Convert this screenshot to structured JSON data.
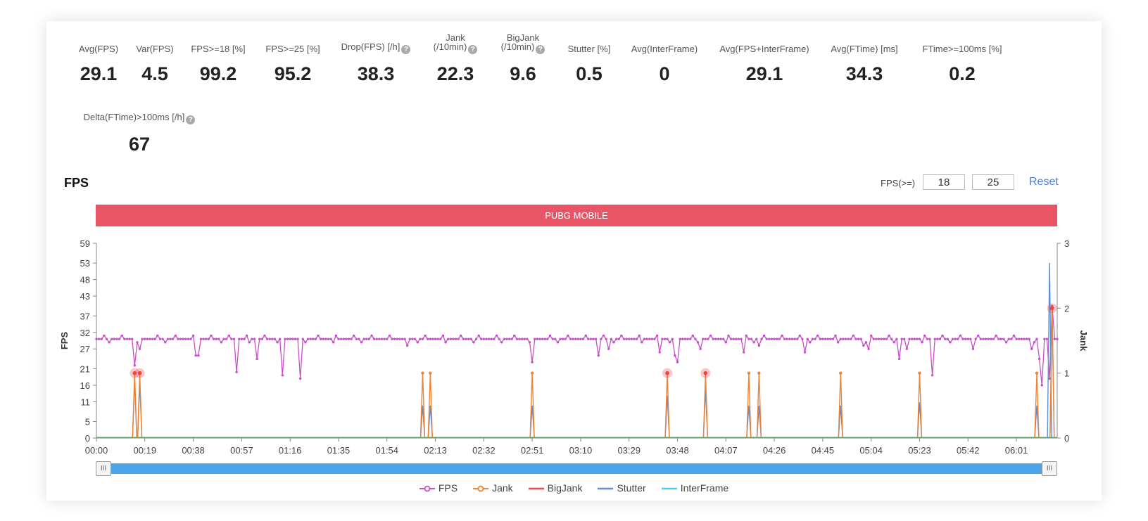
{
  "stats": [
    {
      "label": "Avg(FPS)",
      "value": "29.1",
      "help": false
    },
    {
      "label": "Var(FPS)",
      "value": "4.5",
      "help": false
    },
    {
      "label": "FPS>=18 [%]",
      "value": "99.2",
      "help": false
    },
    {
      "label": "FPS>=25 [%]",
      "value": "95.2",
      "help": false
    },
    {
      "label": "Drop(FPS) [/h]",
      "value": "38.3",
      "help": true
    },
    {
      "label_line1": "Jank",
      "label": "(/10min)",
      "value": "22.3",
      "help": true
    },
    {
      "label_line1": "BigJank",
      "label": "(/10min)",
      "value": "9.6",
      "help": true
    },
    {
      "label": "Stutter [%]",
      "value": "0.5",
      "help": false
    },
    {
      "label": "Avg(InterFrame)",
      "value": "0",
      "help": false
    },
    {
      "label": "Avg(FPS+InterFrame)",
      "value": "29.1",
      "help": false
    },
    {
      "label": "Avg(FTime) [ms]",
      "value": "34.3",
      "help": false
    },
    {
      "label": "FTime>=100ms [%]",
      "value": "0.2",
      "help": false
    },
    {
      "label": "Delta(FTime)>100ms [/h]",
      "value": "67",
      "help": true
    }
  ],
  "help_glyph": "?",
  "section_title": "FPS",
  "threshold": {
    "label": "FPS(>=)",
    "low": "18",
    "high": "25",
    "reset_label": "Reset"
  },
  "app_name": "PUBG MOBILE",
  "slider": {
    "handle_glyph": "III"
  },
  "chart_data": {
    "type": "line",
    "x_ticks": [
      "00:00",
      "00:19",
      "00:38",
      "00:57",
      "01:16",
      "01:35",
      "01:54",
      "02:13",
      "02:32",
      "02:51",
      "03:10",
      "03:29",
      "03:48",
      "04:07",
      "04:26",
      "04:45",
      "05:04",
      "05:23",
      "05:42",
      "06:01"
    ],
    "y_left": {
      "label": "FPS",
      "ticks": [
        "0",
        "5",
        "11",
        "16",
        "21",
        "27",
        "32",
        "37",
        "43",
        "48",
        "53",
        "59"
      ],
      "range": [
        0,
        59
      ]
    },
    "y_right": {
      "label": "Jank",
      "ticks": [
        "0",
        "1",
        "2",
        "3"
      ],
      "range": [
        0,
        3
      ]
    },
    "x_range_seconds": [
      0,
      377
    ],
    "fps_baseline": 30,
    "fps_dips": [
      [
        15,
        22
      ],
      [
        17,
        27
      ],
      [
        39,
        25
      ],
      [
        40,
        25
      ],
      [
        55,
        20
      ],
      [
        63,
        24
      ],
      [
        73,
        19
      ],
      [
        80,
        18
      ],
      [
        122,
        28
      ],
      [
        171,
        23
      ],
      [
        197,
        25
      ],
      [
        201,
        27
      ],
      [
        221,
        26
      ],
      [
        227,
        25
      ],
      [
        228,
        23
      ],
      [
        237,
        27
      ],
      [
        254,
        26
      ],
      [
        260,
        28
      ],
      [
        278,
        26
      ],
      [
        301,
        28
      ],
      [
        303,
        27
      ],
      [
        315,
        24
      ],
      [
        318,
        27
      ],
      [
        320,
        30
      ],
      [
        328,
        19
      ],
      [
        344,
        27
      ],
      [
        359,
        30
      ],
      [
        367,
        27
      ],
      [
        370,
        24
      ],
      [
        371,
        16
      ],
      [
        374,
        18
      ],
      [
        375,
        40
      ],
      [
        376,
        30
      ]
    ],
    "series": [
      {
        "name": "FPS",
        "color": "#c94fc9"
      },
      {
        "name": "Jank",
        "color": "#f08232",
        "points": [
          [
            15,
            1
          ],
          [
            17,
            1
          ],
          [
            128,
            1
          ],
          [
            131,
            1
          ],
          [
            171,
            1
          ],
          [
            224,
            1
          ],
          [
            239,
            1
          ],
          [
            256,
            1
          ],
          [
            260,
            1
          ],
          [
            292,
            1
          ],
          [
            323,
            1
          ],
          [
            369,
            1
          ],
          [
            375,
            2
          ]
        ]
      },
      {
        "name": "BigJank",
        "color": "#e84545",
        "points": [
          [
            15,
            1
          ],
          [
            17,
            1
          ],
          [
            224,
            1
          ],
          [
            239,
            1
          ],
          [
            375,
            2
          ]
        ]
      },
      {
        "name": "Stutter",
        "color": "#5b8fd6",
        "points": [
          [
            15,
            0.9
          ],
          [
            17,
            0.85
          ],
          [
            128,
            0.5
          ],
          [
            131,
            0.5
          ],
          [
            171,
            0.5
          ],
          [
            224,
            0.65
          ],
          [
            239,
            0.75
          ],
          [
            256,
            0.5
          ],
          [
            260,
            0.5
          ],
          [
            292,
            0.5
          ],
          [
            323,
            0.55
          ],
          [
            369,
            0.5
          ],
          [
            374,
            2.7
          ],
          [
            375,
            2.0
          ]
        ]
      },
      {
        "name": "InterFrame",
        "color": "#4dc8e8",
        "points": []
      }
    ],
    "grid": false,
    "legend_position": "bottom"
  },
  "legend": [
    {
      "name": "FPS",
      "color": "#c94fc9",
      "marker": "circle"
    },
    {
      "name": "Jank",
      "color": "#f08232",
      "marker": "circle"
    },
    {
      "name": "BigJank",
      "color": "#e84545",
      "marker": "line"
    },
    {
      "name": "Stutter",
      "color": "#5b8fd6",
      "marker": "line"
    },
    {
      "name": "InterFrame",
      "color": "#4dc8e8",
      "marker": "line"
    }
  ]
}
